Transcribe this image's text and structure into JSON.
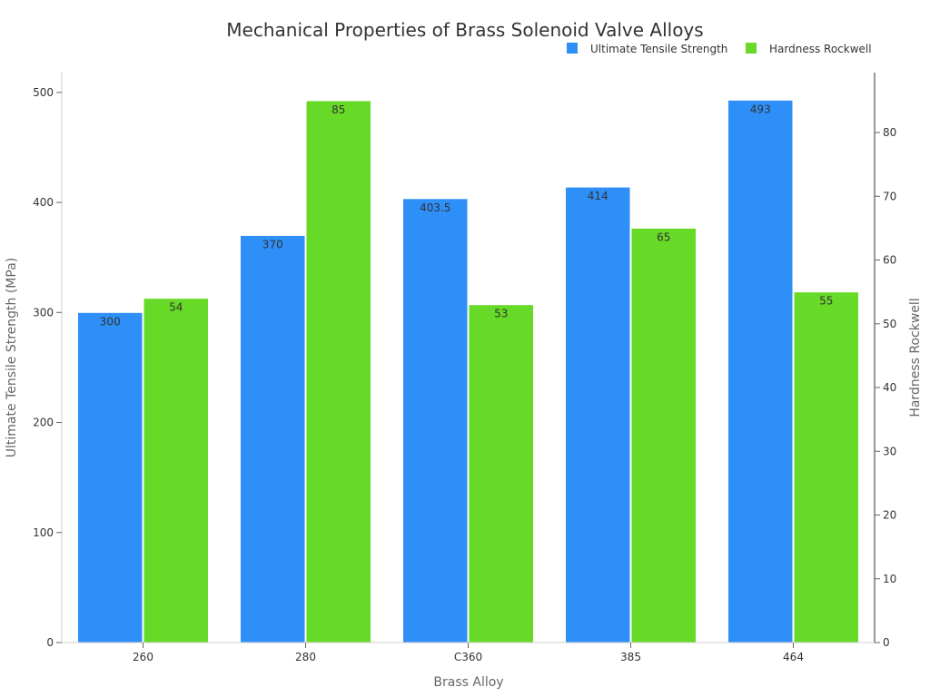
{
  "chart_data": {
    "type": "bar",
    "title": "Mechanical Properties of Brass Solenoid Valve Alloys",
    "xlabel": "Brass Alloy",
    "ylabel": "Ultimate Tensile Strength (MPa)",
    "y2label": "Hardness Rockwell",
    "categories": [
      "260",
      "280",
      "C360",
      "385",
      "464"
    ],
    "series": [
      {
        "name": "Ultimate Tensile Strength",
        "axis": "left",
        "color": "#2e8ff8",
        "values": [
          300,
          370,
          403.5,
          414,
          493
        ],
        "labels": [
          "300",
          "370",
          "403.5",
          "414",
          "493"
        ]
      },
      {
        "name": "Hardness Rockwell",
        "axis": "right",
        "color": "#66da26",
        "values": [
          54,
          85,
          53,
          65,
          55
        ],
        "labels": [
          "54",
          "85",
          "53",
          "65",
          "55"
        ]
      }
    ],
    "ylim": [
      0,
      518
    ],
    "y_ticks": [
      0,
      100,
      200,
      300,
      400,
      500
    ],
    "y2lim": [
      0,
      89.4
    ],
    "y2_ticks": [
      0,
      10,
      20,
      30,
      40,
      50,
      60,
      70,
      80
    ],
    "legend": "top-right",
    "grid": false
  }
}
